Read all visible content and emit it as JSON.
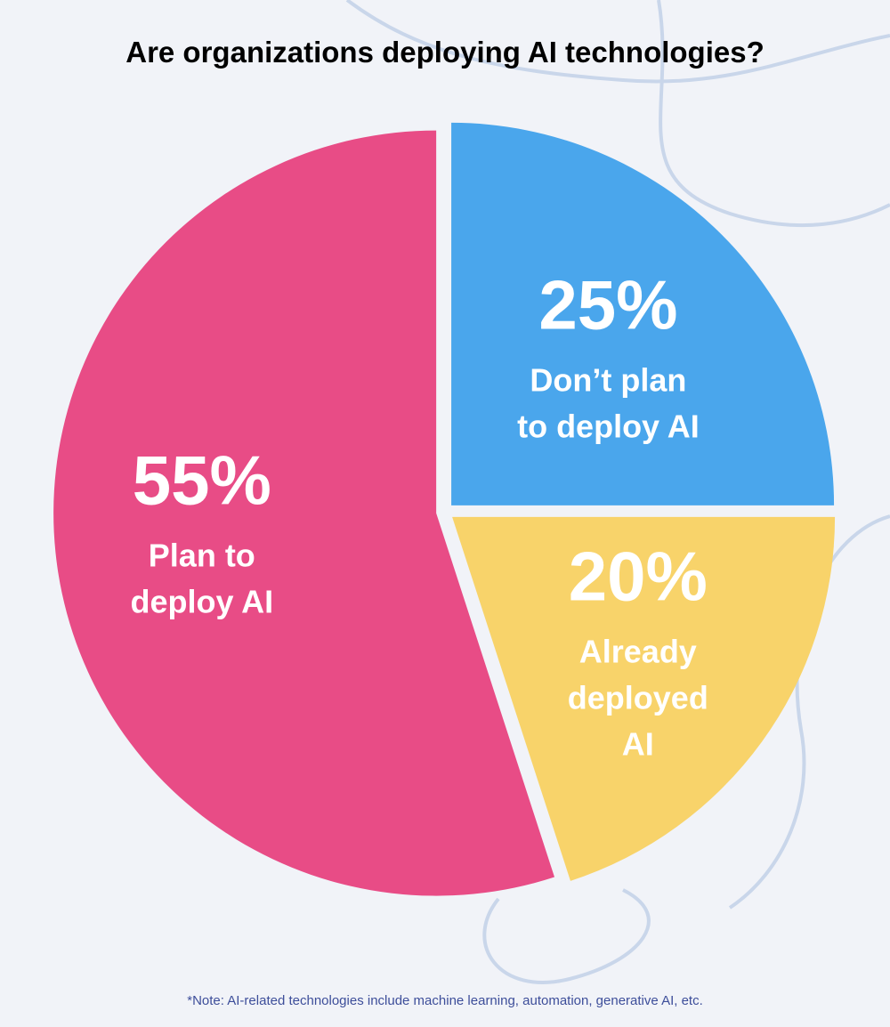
{
  "title": "Are organizations deploying AI technologies?",
  "note": "*Note: AI-related technologies include machine learning, automation, generative AI, etc.",
  "colors": {
    "background": "#f1f3f8",
    "decor_lines": "#c9d6ea"
  },
  "chart_data": {
    "type": "pie",
    "title": "Are organizations deploying AI technologies?",
    "slices": [
      {
        "value": 55,
        "percent_label": "55%",
        "label_lines": [
          "Plan to",
          "deploy AI"
        ],
        "color": "#e84c86"
      },
      {
        "value": 25,
        "percent_label": "25%",
        "label_lines": [
          "Don’t plan",
          "to deploy AI"
        ],
        "color": "#4aa6ec"
      },
      {
        "value": 20,
        "percent_label": "20%",
        "label_lines": [
          "Already",
          "deployed",
          "AI"
        ],
        "color": "#f8d36a"
      }
    ]
  }
}
